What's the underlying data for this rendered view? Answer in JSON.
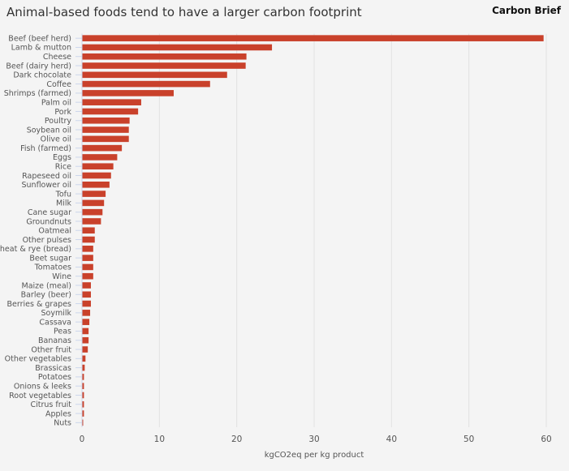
{
  "chart_data": {
    "type": "bar",
    "orientation": "horizontal",
    "title": "Animal-based foods tend to have a larger carbon footprint",
    "source_brand": "Carbon Brief",
    "xlabel": "kgCO2eq per kg product",
    "ylabel": "",
    "xlim": [
      0,
      60
    ],
    "xticks": [
      0,
      10,
      20,
      30,
      40,
      50,
      60
    ],
    "grid": "vertical",
    "bar_color": "#c9412b",
    "categories": [
      "Beef (beef herd)",
      "Lamb & mutton",
      "Cheese",
      "Beef (dairy herd)",
      "Dark chocolate",
      "Coffee",
      "Shrimps (farmed)",
      "Palm oil",
      "Pork",
      "Poultry",
      "Soybean oil",
      "Olive oil",
      "Fish (farmed)",
      "Eggs",
      "Rice",
      "Rapeseed oil",
      "Sunflower oil",
      "Tofu",
      "Milk",
      "Cane sugar",
      "Groundnuts",
      "Oatmeal",
      "Other pulses",
      "Wheat & rye (bread)",
      "Beet sugar",
      "Tomatoes",
      "Wine",
      "Maize (meal)",
      "Barley (beer)",
      "Berries & grapes",
      "Soymilk",
      "Cassava",
      "Peas",
      "Bananas",
      "Other fruit",
      "Other vegetables",
      "Brassicas",
      "Potatoes",
      "Onions & leeks",
      "Root vegetables",
      "Citrus fruit",
      "Apples",
      "Nuts"
    ],
    "values": [
      59.6,
      24.5,
      21.2,
      21.1,
      18.7,
      16.5,
      11.8,
      7.6,
      7.2,
      6.1,
      6.0,
      6.0,
      5.1,
      4.5,
      4.0,
      3.7,
      3.5,
      3.0,
      2.8,
      2.6,
      2.4,
      1.6,
      1.6,
      1.4,
      1.4,
      1.4,
      1.4,
      1.1,
      1.1,
      1.1,
      1.0,
      0.9,
      0.8,
      0.8,
      0.7,
      0.4,
      0.3,
      0.2,
      0.2,
      0.2,
      0.2,
      0.2,
      0.1
    ]
  }
}
